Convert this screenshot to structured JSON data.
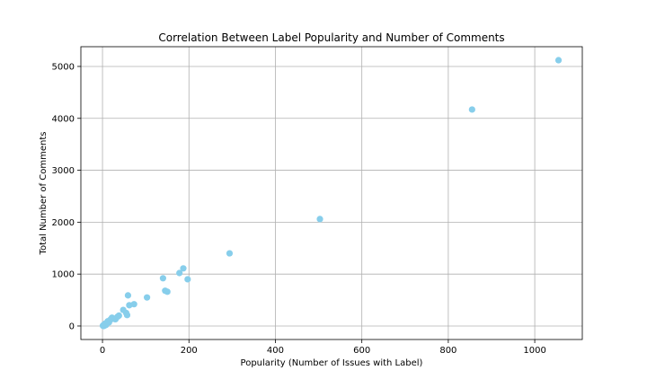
{
  "chart_data": {
    "type": "scatter",
    "title": "Correlation Between Label Popularity and Number of Comments",
    "xlabel": "Popularity (Number of Issues with Label)",
    "ylabel": "Total Number of Comments",
    "xlim": [
      -50,
      1110
    ],
    "ylim": [
      -260,
      5380
    ],
    "xticks": [
      0,
      200,
      400,
      600,
      800,
      1000
    ],
    "yticks": [
      0,
      1000,
      2000,
      3000,
      4000,
      5000
    ],
    "grid": true,
    "point_color": "#87CEEB",
    "points": [
      {
        "x": 1,
        "y": 5
      },
      {
        "x": 2,
        "y": 15
      },
      {
        "x": 3,
        "y": 0
      },
      {
        "x": 4,
        "y": 30
      },
      {
        "x": 5,
        "y": 10
      },
      {
        "x": 6,
        "y": 45
      },
      {
        "x": 8,
        "y": 20
      },
      {
        "x": 10,
        "y": 60
      },
      {
        "x": 12,
        "y": 90
      },
      {
        "x": 15,
        "y": 70
      },
      {
        "x": 18,
        "y": 120
      },
      {
        "x": 22,
        "y": 160
      },
      {
        "x": 25,
        "y": 140
      },
      {
        "x": 30,
        "y": 130
      },
      {
        "x": 35,
        "y": 180
      },
      {
        "x": 38,
        "y": 200
      },
      {
        "x": 48,
        "y": 310
      },
      {
        "x": 55,
        "y": 250
      },
      {
        "x": 57,
        "y": 210
      },
      {
        "x": 59,
        "y": 590
      },
      {
        "x": 62,
        "y": 400
      },
      {
        "x": 73,
        "y": 420
      },
      {
        "x": 103,
        "y": 550
      },
      {
        "x": 140,
        "y": 920
      },
      {
        "x": 145,
        "y": 680
      },
      {
        "x": 150,
        "y": 660
      },
      {
        "x": 178,
        "y": 1020
      },
      {
        "x": 187,
        "y": 1110
      },
      {
        "x": 197,
        "y": 900
      },
      {
        "x": 294,
        "y": 1400
      },
      {
        "x": 503,
        "y": 2060
      },
      {
        "x": 855,
        "y": 4170
      },
      {
        "x": 1055,
        "y": 5120
      }
    ]
  }
}
